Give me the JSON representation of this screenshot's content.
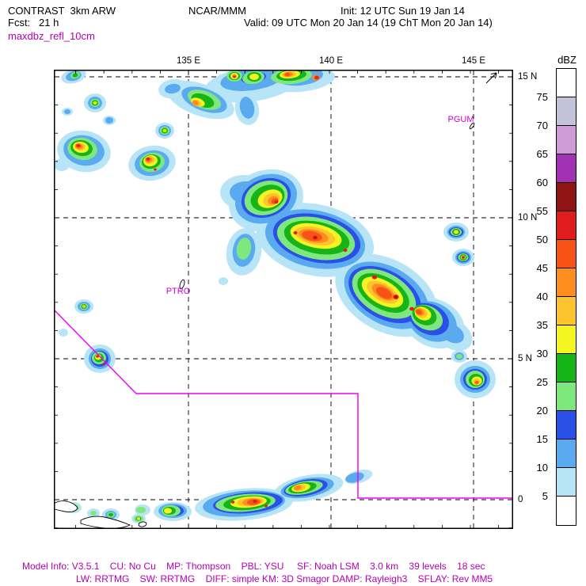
{
  "header": {
    "model": "CONTRAST  3km ARW",
    "center": "NCAR/MMM",
    "init": "Init: 12 UTC Sun 19 Jan 14",
    "fcst": "Fcst:   21 h",
    "valid": "Valid: 09 UTC Mon 20 Jan 14 (19 ChT Mon 20 Jan 14)",
    "field": "maxdbz_refl_10cm"
  },
  "map": {
    "lon_labels": [
      "135 E",
      "140 E",
      "145 E"
    ],
    "lat_labels": [
      "15 N",
      "10 N",
      "5 N",
      "0"
    ],
    "stations": [
      {
        "id": "PGUM"
      },
      {
        "id": "PTRO"
      }
    ]
  },
  "colorbar": {
    "title": "dBZ",
    "tick_labels": [
      "75",
      "70",
      "65",
      "60",
      "55",
      "50",
      "45",
      "40",
      "35",
      "30",
      "25",
      "20",
      "15",
      "10",
      "5"
    ],
    "colors_top_to_bottom": [
      "#ffffff",
      "#c2c2d8",
      "#d09cd8",
      "#a232b4",
      "#8f1414",
      "#df1d1d",
      "#f85317",
      "#fc8d1e",
      "#fdc52d",
      "#f5f521",
      "#16b416",
      "#7ee87e",
      "#2a50e8",
      "#5aaaf0",
      "#b8e4f8",
      "#ffffff"
    ]
  },
  "footer": {
    "line1": "Model Info: V3.5.1    CU: No Cu    MP: Thompson    PBL: YSU     SF: Noah LSM    3.0 km    39 levels    18 sec",
    "line2": "LW: RRTMG    SW: RRTMG    DIFF: simple KM: 3D Smagor DAMP: Rayleigh3    SFLAY: Rev MM5"
  },
  "colors": {
    "annotation_magenta": "#d400d4",
    "boundary_magenta": "#f000f0",
    "footer_purple": "#b400b4"
  }
}
